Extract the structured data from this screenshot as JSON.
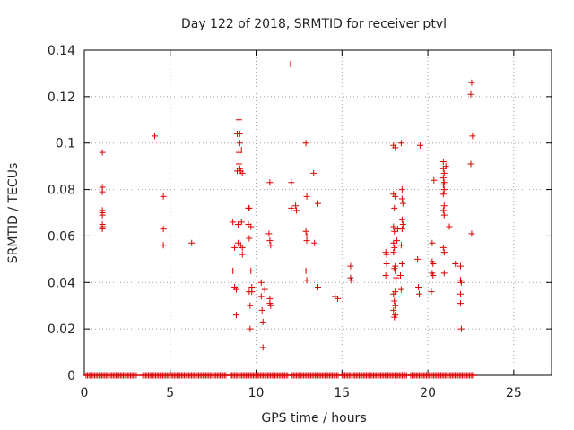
{
  "colors": {
    "points": "#dd0000",
    "grid": "#a0a0a0",
    "axis": "#000000"
  },
  "chart_data": {
    "type": "scatter",
    "title": "Day 122 of 2018, SRMTID for receiver ptvl",
    "xlabel": "GPS time / hours",
    "ylabel": "SRMTID / TECUs",
    "xlim": [
      0,
      27.2
    ],
    "ylim": [
      0,
      0.14
    ],
    "xticks": [
      0,
      5,
      10,
      15,
      20,
      25
    ],
    "xtick_labels": [
      "0",
      "5",
      "10",
      "15",
      "20",
      "25"
    ],
    "yticks": [
      0,
      0.02,
      0.04,
      0.06,
      0.08,
      0.1,
      0.12,
      0.14
    ],
    "ytick_labels": [
      "0",
      "0.02",
      "0.04",
      "0.06",
      "0.08",
      "0.1",
      "0.12",
      "0.14"
    ],
    "grid": true,
    "marker": "plus",
    "zero_baseline": {
      "y": 0,
      "ranges": [
        [
          0.1,
          3.1
        ],
        [
          3.4,
          8.3
        ],
        [
          8.5,
          11.9
        ],
        [
          12.1,
          14.8
        ],
        [
          15.0,
          18.8
        ],
        [
          19.0,
          22.7
        ]
      ]
    },
    "series": [
      {
        "name": "SRMTID",
        "points": [
          [
            1.05,
            0.096
          ],
          [
            1.05,
            0.081
          ],
          [
            1.05,
            0.079
          ],
          [
            1.05,
            0.071
          ],
          [
            1.05,
            0.07
          ],
          [
            1.05,
            0.069
          ],
          [
            1.05,
            0.065
          ],
          [
            1.05,
            0.064
          ],
          [
            1.05,
            0.063
          ],
          [
            4.1,
            0.103
          ],
          [
            4.6,
            0.077
          ],
          [
            4.6,
            0.063
          ],
          [
            4.6,
            0.056
          ],
          [
            6.25,
            0.057
          ],
          [
            8.65,
            0.066
          ],
          [
            8.65,
            0.045
          ],
          [
            8.75,
            0.038
          ],
          [
            8.75,
            0.055
          ],
          [
            8.85,
            0.037
          ],
          [
            8.85,
            0.026
          ],
          [
            8.9,
            0.104
          ],
          [
            8.9,
            0.088
          ],
          [
            8.95,
            0.065
          ],
          [
            8.95,
            0.057
          ],
          [
            9.0,
            0.11
          ],
          [
            9.0,
            0.096
          ],
          [
            9.0,
            0.091
          ],
          [
            9.05,
            0.104
          ],
          [
            9.05,
            0.1
          ],
          [
            9.05,
            0.089
          ],
          [
            9.1,
            0.088
          ],
          [
            9.1,
            0.056
          ],
          [
            9.15,
            0.097
          ],
          [
            9.15,
            0.066
          ],
          [
            9.2,
            0.087
          ],
          [
            9.2,
            0.055
          ],
          [
            9.2,
            0.052
          ],
          [
            9.55,
            0.072
          ],
          [
            9.55,
            0.065
          ],
          [
            9.6,
            0.059
          ],
          [
            9.6,
            0.072
          ],
          [
            9.6,
            0.036
          ],
          [
            9.65,
            0.03
          ],
          [
            9.65,
            0.02
          ],
          [
            9.7,
            0.064
          ],
          [
            9.7,
            0.045
          ],
          [
            9.75,
            0.038
          ],
          [
            9.75,
            0.036
          ],
          [
            10.3,
            0.04
          ],
          [
            10.3,
            0.034
          ],
          [
            10.35,
            0.028
          ],
          [
            10.4,
            0.012
          ],
          [
            10.4,
            0.023
          ],
          [
            10.5,
            0.037
          ],
          [
            10.75,
            0.061
          ],
          [
            10.8,
            0.083
          ],
          [
            10.8,
            0.058
          ],
          [
            10.8,
            0.033
          ],
          [
            10.8,
            0.031
          ],
          [
            10.85,
            0.056
          ],
          [
            10.85,
            0.03
          ],
          [
            12.0,
            0.134
          ],
          [
            12.05,
            0.083
          ],
          [
            12.05,
            0.072
          ],
          [
            12.3,
            0.073
          ],
          [
            12.35,
            0.071
          ],
          [
            12.9,
            0.1
          ],
          [
            12.95,
            0.077
          ],
          [
            12.9,
            0.062
          ],
          [
            12.95,
            0.06
          ],
          [
            12.95,
            0.058
          ],
          [
            12.9,
            0.045
          ],
          [
            12.95,
            0.041
          ],
          [
            13.35,
            0.087
          ],
          [
            13.4,
            0.057
          ],
          [
            13.6,
            0.074
          ],
          [
            13.6,
            0.038
          ],
          [
            14.6,
            0.034
          ],
          [
            14.75,
            0.033
          ],
          [
            15.5,
            0.047
          ],
          [
            15.5,
            0.042
          ],
          [
            15.55,
            0.041
          ],
          [
            17.55,
            0.053
          ],
          [
            17.6,
            0.052
          ],
          [
            17.6,
            0.048
          ],
          [
            17.55,
            0.043
          ],
          [
            18.0,
            0.099
          ],
          [
            18.1,
            0.098
          ],
          [
            18.0,
            0.078
          ],
          [
            18.1,
            0.077
          ],
          [
            18.05,
            0.072
          ],
          [
            18.0,
            0.064
          ],
          [
            18.05,
            0.062
          ],
          [
            18.0,
            0.057
          ],
          [
            18.05,
            0.055
          ],
          [
            18.0,
            0.053
          ],
          [
            18.1,
            0.047
          ],
          [
            18.05,
            0.046
          ],
          [
            18.1,
            0.045
          ],
          [
            18.15,
            0.042
          ],
          [
            18.1,
            0.036
          ],
          [
            18.0,
            0.035
          ],
          [
            18.05,
            0.032
          ],
          [
            18.1,
            0.03
          ],
          [
            18.0,
            0.028
          ],
          [
            18.1,
            0.026
          ],
          [
            18.05,
            0.025
          ],
          [
            18.2,
            0.058
          ],
          [
            18.25,
            0.063
          ],
          [
            18.45,
            0.1
          ],
          [
            18.5,
            0.08
          ],
          [
            18.5,
            0.076
          ],
          [
            18.55,
            0.074
          ],
          [
            18.5,
            0.067
          ],
          [
            18.55,
            0.065
          ],
          [
            18.5,
            0.063
          ],
          [
            18.45,
            0.056
          ],
          [
            18.5,
            0.048
          ],
          [
            18.4,
            0.043
          ],
          [
            18.45,
            0.037
          ],
          [
            19.55,
            0.099
          ],
          [
            19.4,
            0.05
          ],
          [
            19.45,
            0.038
          ],
          [
            19.5,
            0.035
          ],
          [
            20.25,
            0.057
          ],
          [
            20.25,
            0.049
          ],
          [
            20.3,
            0.048
          ],
          [
            20.25,
            0.044
          ],
          [
            20.3,
            0.043
          ],
          [
            20.2,
            0.036
          ],
          [
            20.35,
            0.084
          ],
          [
            20.9,
            0.092
          ],
          [
            20.9,
            0.089
          ],
          [
            20.95,
            0.087
          ],
          [
            20.9,
            0.085
          ],
          [
            20.95,
            0.083
          ],
          [
            20.9,
            0.082
          ],
          [
            20.95,
            0.08
          ],
          [
            20.9,
            0.078
          ],
          [
            20.95,
            0.073
          ],
          [
            20.9,
            0.071
          ],
          [
            20.95,
            0.069
          ],
          [
            20.9,
            0.055
          ],
          [
            20.95,
            0.053
          ],
          [
            20.95,
            0.044
          ],
          [
            21.05,
            0.09
          ],
          [
            21.25,
            0.064
          ],
          [
            21.6,
            0.048
          ],
          [
            21.9,
            0.047
          ],
          [
            21.9,
            0.041
          ],
          [
            21.95,
            0.04
          ],
          [
            21.9,
            0.035
          ],
          [
            21.9,
            0.031
          ],
          [
            21.95,
            0.02
          ],
          [
            22.55,
            0.126
          ],
          [
            22.5,
            0.121
          ],
          [
            22.6,
            0.103
          ],
          [
            22.5,
            0.091
          ],
          [
            22.55,
            0.061
          ]
        ]
      }
    ]
  }
}
